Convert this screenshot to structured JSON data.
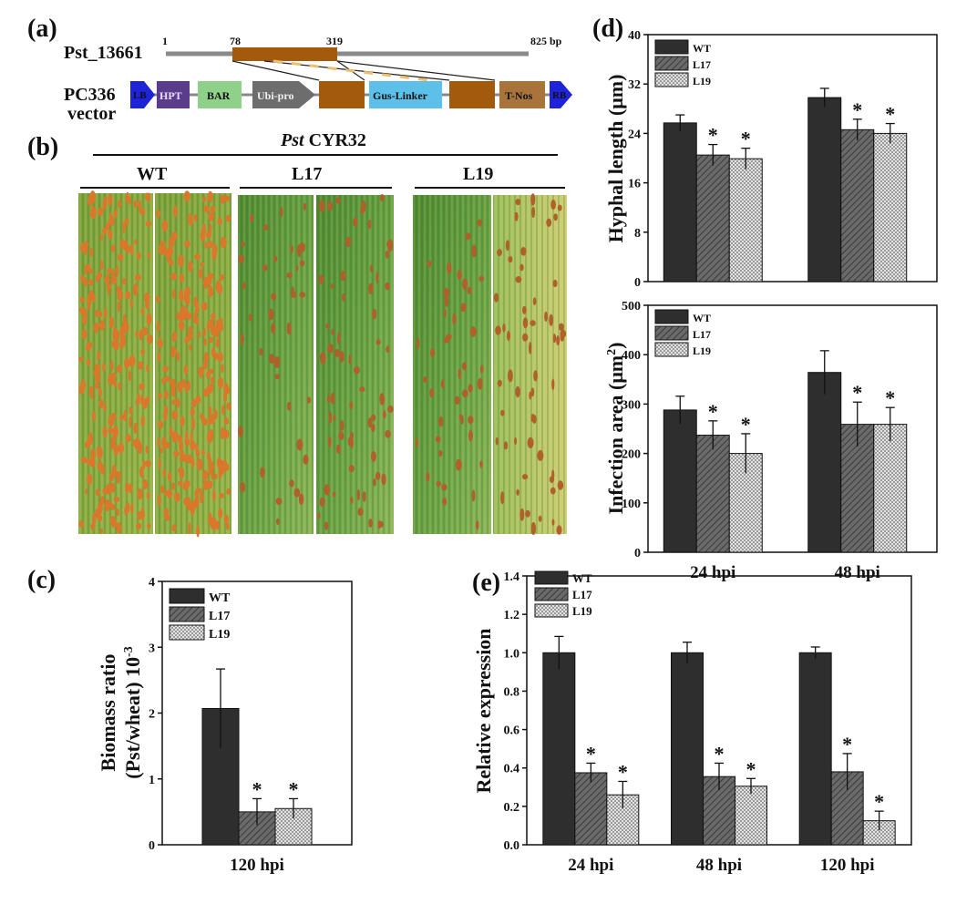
{
  "figure": {
    "panel_labels": [
      "(a)",
      "(b)",
      "(c)",
      "(d)",
      "(e)"
    ]
  },
  "construct": {
    "gene_name": "Pst_13661",
    "ticks": [
      "1",
      "78",
      "319",
      "825 bp"
    ],
    "vector_label_line1": "PC336",
    "vector_label_line2": "vector",
    "elements": [
      "LB",
      "HPT",
      "BAR",
      "Ubi-pro",
      "Gus-Linker",
      "T-Nos",
      "RB"
    ],
    "colors": {
      "arrow_blue": "#1e22d8",
      "hpt": "#5b3b8c",
      "bar": "#8fd18a",
      "ubi": "#6d6d6d",
      "gene": "#a45a0c",
      "gus": "#5cc0e8",
      "tnos": "#a8743c",
      "line": "#888888"
    }
  },
  "leaves": {
    "strain": "CYR32",
    "strain_prefix": "Pst",
    "groups": [
      "WT",
      "L17",
      "L19"
    ]
  },
  "chart_data": [
    {
      "panel": "c",
      "type": "bar",
      "categories": [
        "120 hpi"
      ],
      "series": [
        {
          "name": "WT",
          "values": [
            2.07
          ],
          "errors": [
            0.6
          ],
          "sig": [
            false
          ]
        },
        {
          "name": "L17",
          "values": [
            0.5
          ],
          "errors": [
            0.2
          ],
          "sig": [
            true
          ]
        },
        {
          "name": "L19",
          "values": [
            0.55
          ],
          "errors": [
            0.15
          ],
          "sig": [
            true
          ]
        }
      ],
      "ylabel_line1": "Biomass ratio",
      "ylabel_line2": "(Pst/wheat) 10",
      "ylabel_sup": "-3",
      "ylim": [
        0,
        4
      ],
      "yticks": [
        0,
        1,
        2,
        3,
        4
      ],
      "legend": "top-left"
    },
    {
      "panel": "d-top",
      "type": "bar",
      "categories": [
        "24 hpi",
        "48 hpi"
      ],
      "series": [
        {
          "name": "WT",
          "values": [
            25.7,
            29.8
          ],
          "errors": [
            1.3,
            1.5
          ],
          "sig": [
            false,
            false
          ]
        },
        {
          "name": "L17",
          "values": [
            20.5,
            24.6
          ],
          "errors": [
            1.7,
            1.7
          ],
          "sig": [
            true,
            true
          ]
        },
        {
          "name": "L19",
          "values": [
            19.9,
            24.0
          ],
          "errors": [
            1.7,
            1.6
          ],
          "sig": [
            true,
            true
          ]
        }
      ],
      "ylabel": "Hyphal length (μm)",
      "ylim": [
        0,
        40
      ],
      "yticks": [
        0,
        8,
        16,
        24,
        32,
        40
      ],
      "legend": "top-left"
    },
    {
      "panel": "d-bottom",
      "type": "bar",
      "categories": [
        "24 hpi",
        "48 hpi"
      ],
      "series": [
        {
          "name": "WT",
          "values": [
            288,
            364
          ],
          "errors": [
            28,
            44
          ],
          "sig": [
            false,
            false
          ]
        },
        {
          "name": "L17",
          "values": [
            237,
            259
          ],
          "errors": [
            29,
            45
          ],
          "sig": [
            true,
            true
          ]
        },
        {
          "name": "L19",
          "values": [
            200,
            259
          ],
          "errors": [
            40,
            34
          ],
          "sig": [
            true,
            true
          ]
        }
      ],
      "ylabel_main": "Infection area (μm",
      "ylabel_sup": "2",
      "ylabel_end": ")",
      "ylim": [
        0,
        500
      ],
      "yticks": [
        0,
        100,
        200,
        300,
        400,
        500
      ],
      "legend": "top-left"
    },
    {
      "panel": "e",
      "type": "bar",
      "categories": [
        "24 hpi",
        "48 hpi",
        "120 hpi"
      ],
      "series": [
        {
          "name": "WT",
          "values": [
            1.0,
            1.0,
            1.0
          ],
          "errors": [
            0.085,
            0.055,
            0.03
          ],
          "sig": [
            false,
            false,
            false
          ]
        },
        {
          "name": "L17",
          "values": [
            0.375,
            0.355,
            0.38
          ],
          "errors": [
            0.05,
            0.07,
            0.095
          ],
          "sig": [
            true,
            true,
            true
          ]
        },
        {
          "name": "L19",
          "values": [
            0.26,
            0.305,
            0.125
          ],
          "errors": [
            0.07,
            0.04,
            0.05
          ],
          "sig": [
            true,
            true,
            true
          ]
        }
      ],
      "ylabel": "Relative expression",
      "ylim": [
        0,
        1.4
      ],
      "yticks": [
        "0.0",
        "0.2",
        "0.4",
        "0.6",
        "0.8",
        "1.0",
        "1.2",
        "1.4"
      ],
      "legend": "top-left"
    }
  ],
  "colors": {
    "wt": "#2e2e2e",
    "l17": "#6e6e6e",
    "l19": "#c8c8c8",
    "axis": "#111111"
  }
}
